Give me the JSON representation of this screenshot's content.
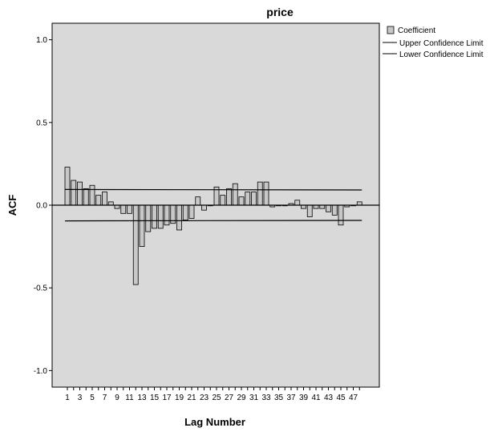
{
  "chart_data": {
    "type": "bar",
    "title": "price",
    "xlabel": "Lag Number",
    "ylabel": "ACF",
    "ylim": [
      -1.1,
      1.1
    ],
    "yticks": [
      "1.0",
      "0.5",
      "0.0",
      "-0.5",
      "-1.0"
    ],
    "ytick_values": [
      1.0,
      0.5,
      0.0,
      -0.5,
      -1.0
    ],
    "xtick_labels": [
      "1",
      "3",
      "5",
      "7",
      "9",
      "11",
      "13",
      "15",
      "17",
      "19",
      "21",
      "23",
      "25",
      "27",
      "29",
      "31",
      "33",
      "35",
      "37",
      "39",
      "41",
      "43",
      "45",
      "47"
    ],
    "categories": [
      1,
      2,
      3,
      4,
      5,
      6,
      7,
      8,
      9,
      10,
      11,
      12,
      13,
      14,
      15,
      16,
      17,
      18,
      19,
      20,
      21,
      22,
      23,
      24,
      25,
      26,
      27,
      28,
      29,
      30,
      31,
      32,
      33,
      34,
      35,
      36,
      37,
      38,
      39,
      40,
      41,
      42,
      43,
      44,
      45,
      46,
      47,
      48
    ],
    "series": [
      {
        "name": "Coefficient",
        "values": [
          0.23,
          0.15,
          0.14,
          0.1,
          0.12,
          0.06,
          0.08,
          0.02,
          -0.02,
          -0.05,
          -0.05,
          -0.48,
          -0.25,
          -0.16,
          -0.14,
          -0.14,
          -0.12,
          -0.11,
          -0.15,
          -0.09,
          -0.08,
          0.05,
          -0.03,
          0.0,
          0.11,
          0.06,
          0.1,
          0.13,
          0.05,
          0.08,
          0.08,
          0.14,
          0.14,
          -0.01,
          0.0,
          0.0,
          0.01,
          0.03,
          -0.02,
          -0.07,
          -0.02,
          -0.02,
          -0.04,
          -0.06,
          -0.12,
          -0.01,
          0.0,
          0.02
        ]
      }
    ],
    "upper_confidence_limit": {
      "name": "Upper Confidence Limit",
      "start": 0.095,
      "end": 0.092
    },
    "lower_confidence_limit": {
      "name": "Lower Confidence Limit",
      "start": -0.095,
      "end": -0.092
    },
    "legend": {
      "placement": "right",
      "items": [
        "Coefficient",
        "Upper Confidence Limit",
        "Lower Confidence Limit"
      ]
    },
    "colors": {
      "plot_background": "#d9d9d9",
      "bar_fill": "#c8c8c8",
      "bar_stroke": "#000000",
      "line": "#000000"
    }
  }
}
